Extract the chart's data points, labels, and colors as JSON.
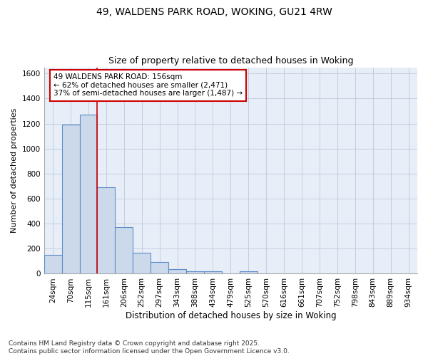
{
  "title": "49, WALDENS PARK ROAD, WOKING, GU21 4RW",
  "subtitle": "Size of property relative to detached houses in Woking",
  "xlabel": "Distribution of detached houses by size in Woking",
  "ylabel": "Number of detached properties",
  "bar_labels": [
    "24sqm",
    "70sqm",
    "115sqm",
    "161sqm",
    "206sqm",
    "252sqm",
    "297sqm",
    "343sqm",
    "388sqm",
    "434sqm",
    "479sqm",
    "525sqm",
    "570sqm",
    "616sqm",
    "661sqm",
    "707sqm",
    "752sqm",
    "798sqm",
    "843sqm",
    "889sqm",
    "934sqm"
  ],
  "bar_values": [
    148,
    1190,
    1270,
    690,
    375,
    170,
    95,
    35,
    22,
    20,
    0,
    20,
    0,
    0,
    0,
    0,
    0,
    0,
    0,
    0,
    0
  ],
  "bar_color": "#ccd9eb",
  "bar_edge_color": "#5b8dc8",
  "bar_edge_width": 0.8,
  "grid_color": "#c0cfe0",
  "background_color": "#ffffff",
  "plot_bg_color": "#e8eef8",
  "vline_x": 3.0,
  "vline_color": "#cc0000",
  "annotation_text": "49 WALDENS PARK ROAD: 156sqm\n← 62% of detached houses are smaller (2,471)\n37% of semi-detached houses are larger (1,487) →",
  "annotation_box_facecolor": "#ffffff",
  "annotation_box_edgecolor": "#cc0000",
  "ylim": [
    0,
    1650
  ],
  "yticks": [
    0,
    200,
    400,
    600,
    800,
    1000,
    1200,
    1400,
    1600
  ],
  "footnote": "Contains HM Land Registry data © Crown copyright and database right 2025.\nContains public sector information licensed under the Open Government Licence v3.0.",
  "title_fontsize": 10,
  "subtitle_fontsize": 9,
  "xlabel_fontsize": 8.5,
  "ylabel_fontsize": 8,
  "tick_fontsize": 7.5,
  "annotation_fontsize": 7.5,
  "footnote_fontsize": 6.5
}
